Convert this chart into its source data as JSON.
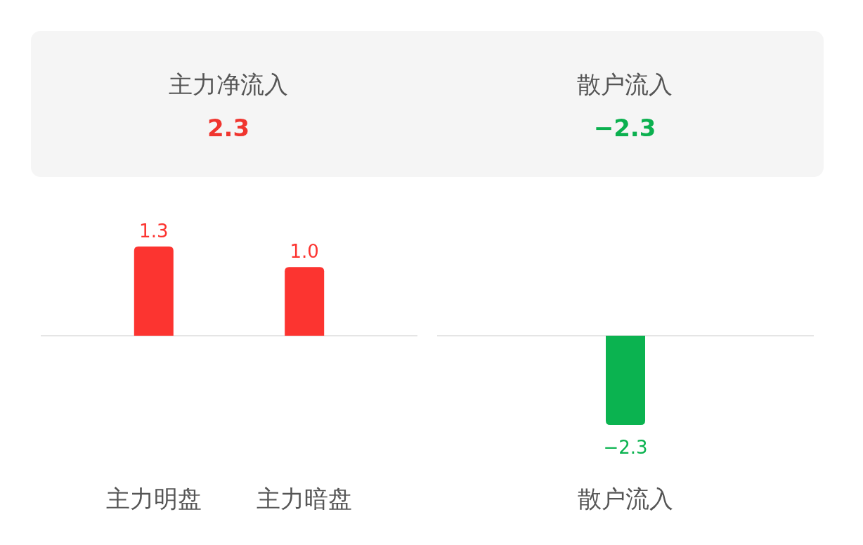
{
  "chart_data": [
    {
      "type": "other",
      "annotations": [
        "主力净流入",
        "2.3",
        "散户流入",
        "−2.3"
      ],
      "colors": [
        "#555555",
        "#f0352f",
        "#555555",
        "#0bb04f"
      ]
    },
    {
      "type": "bar",
      "categories": [
        "主力明盘",
        "主力暗盘"
      ],
      "values": [
        1.3,
        1.0
      ],
      "value_labels": [
        "1.3",
        "1.0"
      ],
      "colors": [
        "#fc3430",
        "#fc3430"
      ]
    },
    {
      "type": "bar",
      "categories": [
        "散户流入"
      ],
      "values": [
        -2.3
      ],
      "colors": [
        "#0bb350"
      ],
      "data_labels": true
    }
  ]
}
